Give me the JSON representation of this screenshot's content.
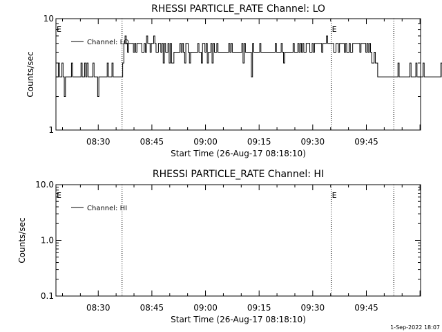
{
  "footer": {
    "timestamp": "1-Sep-2022 18:07"
  },
  "chart_data": [
    {
      "type": "line",
      "title": "RHESSI PARTICLE_RATE Channel: LO",
      "xlabel": "Start Time (26-Aug-17 08:18:10)",
      "ylabel": "Counts/sec",
      "yscale": "log",
      "ylim": [
        1,
        10
      ],
      "y_tick_labels": [
        "1",
        "10"
      ],
      "x_range": [
        "08:18:10",
        "10:00:10"
      ],
      "x_tick_labels": [
        "08:30",
        "08:45",
        "09:00",
        "09:15",
        "09:30",
        "09:45"
      ],
      "legend": {
        "placement": "top-left",
        "entries": [
          "Channel: LO"
        ]
      },
      "markers": [
        {
          "time": "08:36:40",
          "label": ""
        },
        {
          "time": "09:35:10",
          "label": "E"
        },
        {
          "time": "09:52:40",
          "label": ""
        }
      ],
      "edge_marker_label": "E",
      "series": [
        {
          "t_start": "08:18:10",
          "t_step_sec": 20,
          "values": [
            3,
            3,
            4,
            3,
            3,
            4,
            3,
            2,
            3,
            3,
            3,
            3,
            3,
            4,
            3,
            3,
            3,
            3,
            3,
            3,
            3,
            4,
            3,
            3,
            4,
            3,
            4,
            3,
            3,
            3,
            3,
            4,
            3,
            3,
            3,
            2,
            3,
            3,
            3,
            3,
            3,
            3,
            3,
            4,
            3,
            3,
            3,
            4,
            3,
            3,
            3,
            3,
            3,
            3,
            3,
            3,
            4,
            6,
            7,
            6,
            5,
            6,
            6,
            6,
            6,
            5,
            6,
            5,
            6,
            6,
            6,
            6,
            5,
            5,
            6,
            5,
            7,
            6,
            6,
            5,
            6,
            6,
            7,
            6,
            5,
            5,
            6,
            6,
            5,
            6,
            4,
            6,
            5,
            5,
            6,
            4,
            6,
            4,
            4,
            5,
            5,
            5,
            5,
            5,
            6,
            5,
            6,
            5,
            4,
            6,
            6,
            5,
            4,
            5,
            5,
            5,
            5,
            5,
            5,
            6,
            5,
            5,
            4,
            6,
            6,
            5,
            6,
            4,
            5,
            5,
            6,
            4,
            6,
            5,
            5,
            6,
            5,
            5,
            5,
            5,
            5,
            5,
            5,
            5,
            5,
            6,
            5,
            6,
            5,
            5,
            5,
            5,
            5,
            5,
            5,
            5,
            6,
            4,
            6,
            5,
            5,
            5,
            5,
            5,
            3,
            6,
            5,
            5,
            5,
            5,
            5,
            6,
            5,
            5,
            5,
            5,
            5,
            5,
            5,
            5,
            5,
            5,
            5,
            5,
            6,
            5,
            5,
            5,
            5,
            6,
            5,
            4,
            5,
            5,
            5,
            5,
            5,
            5,
            5,
            6,
            5,
            5,
            5,
            6,
            5,
            6,
            5,
            6,
            5,
            5,
            6,
            6,
            6,
            5,
            5,
            6,
            5,
            6,
            6,
            6,
            6,
            6,
            6,
            5,
            6,
            6,
            6,
            7,
            6,
            6,
            6,
            6,
            6,
            5,
            5,
            6,
            6,
            5,
            6,
            6,
            6,
            6,
            5,
            6,
            5,
            5,
            6,
            5,
            5,
            6,
            6,
            6,
            6,
            6,
            6,
            5,
            6,
            6,
            6,
            6,
            5,
            6,
            5,
            6,
            5,
            4,
            4,
            5,
            4,
            4,
            3,
            3,
            3,
            3,
            3,
            3,
            3,
            3,
            3,
            3,
            3,
            3,
            3,
            3,
            3,
            3,
            3,
            4,
            3,
            3,
            3,
            3,
            3,
            3,
            3,
            3,
            3,
            4,
            3,
            3,
            3,
            3,
            4,
            3,
            3,
            3,
            3,
            3,
            4,
            3,
            3,
            3,
            3,
            3,
            3,
            3,
            3,
            3,
            3,
            3,
            3,
            3,
            3,
            4,
            3,
            3,
            3,
            3,
            3
          ]
        }
      ]
    },
    {
      "type": "line",
      "title": "RHESSI PARTICLE_RATE Channel: HI",
      "xlabel": "Start Time (26-Aug-17 08:18:10)",
      "ylabel": "Counts/sec",
      "yscale": "log",
      "ylim": [
        0.1,
        10
      ],
      "y_tick_labels": [
        "0.1",
        "1.0",
        "10.0"
      ],
      "x_range": [
        "08:18:10",
        "10:00:10"
      ],
      "x_tick_labels": [
        "08:30",
        "08:45",
        "09:00",
        "09:15",
        "09:30",
        "09:45"
      ],
      "legend": {
        "placement": "top-left",
        "entries": [
          "Channel: HI"
        ]
      },
      "markers": [
        {
          "time": "08:36:40",
          "label": ""
        },
        {
          "time": "09:35:10",
          "label": "E"
        },
        {
          "time": "09:52:40",
          "label": ""
        }
      ],
      "edge_marker_label": "E",
      "series": []
    }
  ]
}
